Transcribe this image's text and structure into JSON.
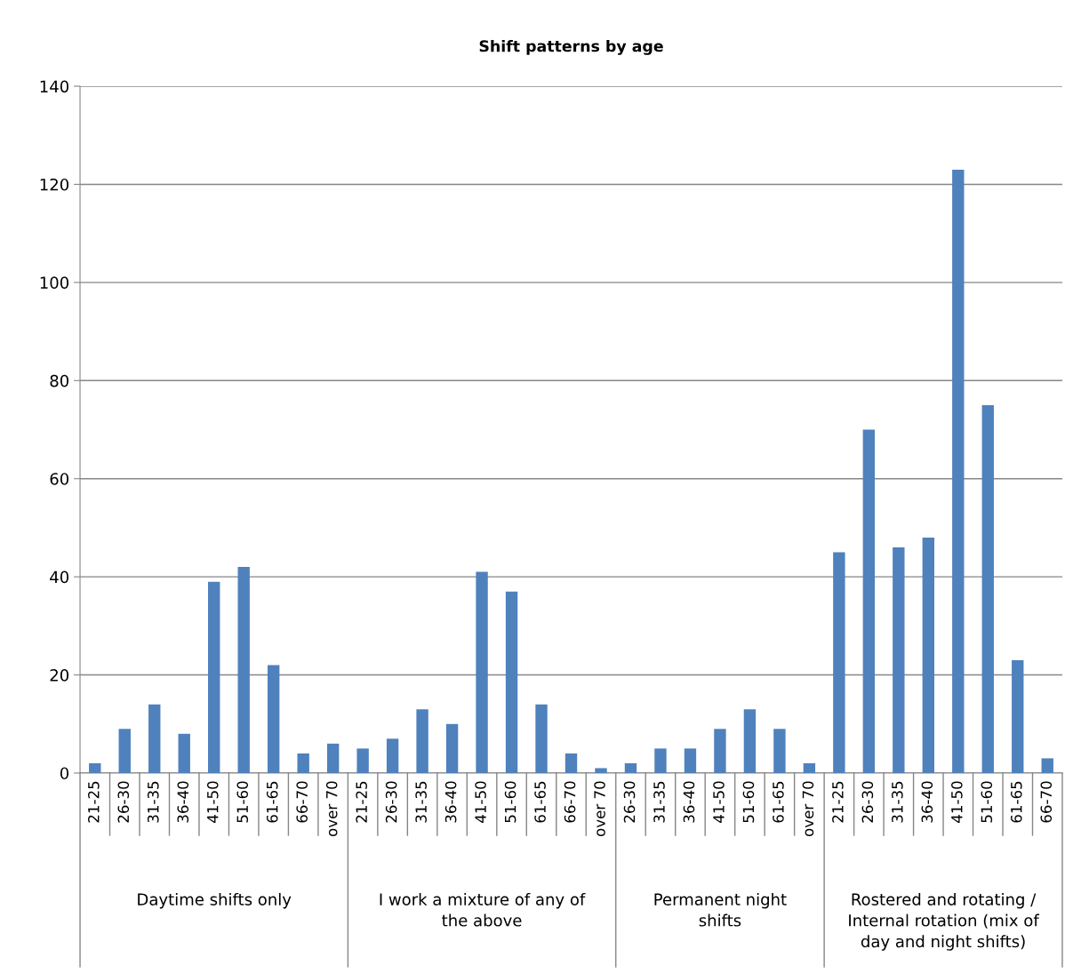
{
  "chart_data": {
    "type": "bar",
    "title": "Shift patterns by age",
    "categories": [
      "21-25",
      "26-30",
      "31-35",
      "36-40",
      "41-50",
      "51-60",
      "61-65",
      "66-70",
      "over 70",
      "21-25",
      "26-30",
      "31-35",
      "36-40",
      "41-50",
      "51-60",
      "61-65",
      "66-70",
      "over 70",
      "26-30",
      "31-35",
      "36-40",
      "41-50",
      "51-60",
      "61-65",
      "over 70",
      "21-25",
      "26-30",
      "31-35",
      "36-40",
      "41-50",
      "51-60",
      "61-65",
      "66-70"
    ],
    "values": [
      2,
      9,
      14,
      8,
      39,
      42,
      22,
      4,
      6,
      5,
      7,
      13,
      10,
      41,
      37,
      14,
      4,
      1,
      2,
      5,
      5,
      9,
      13,
      9,
      2,
      45,
      70,
      46,
      48,
      123,
      75,
      23,
      3
    ],
    "color": "#4f81bd",
    "ylim": [
      0,
      140
    ],
    "yticks": [
      0,
      20,
      40,
      60,
      80,
      100,
      120,
      140
    ],
    "grid": "y",
    "annotations": [
      "Daytime shifts only",
      "I work a mixture of any of\nthe above",
      "Permanent night\nshifts",
      "Rostered and rotating /\nInternal rotation (mix of\nday and night shifts)"
    ]
  }
}
